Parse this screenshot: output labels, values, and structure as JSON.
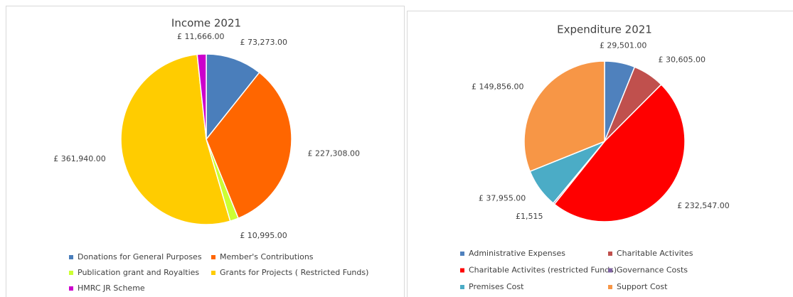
{
  "chart_data": [
    {
      "type": "pie",
      "title": "Income 2021",
      "categories": [
        "Donations for General Purposes",
        "Member's Contributions",
        "Publication grant and Royalties",
        "Grants for Projects ( Restricted Funds)",
        "HMRC JR Scheme"
      ],
      "values": [
        73273,
        227308,
        10995,
        361940,
        11666
      ],
      "value_labels": [
        "£ 73,273.00",
        "£ 227,308.00",
        "£ 10,995.00",
        "£ 361,940.00",
        "£ 11,666.00"
      ],
      "colors": [
        "#4a7ebb",
        "#ff6600",
        "#ccff33",
        "#ffcc00",
        "#cc00cc"
      ]
    },
    {
      "type": "pie",
      "title": "Expenditure 2021",
      "categories": [
        "Administrative Expenses",
        "Charitable Activites",
        "Charitable Activites (restricted Funds)",
        "Governance Costs",
        "Premises Cost",
        "Support Cost"
      ],
      "values": [
        29501,
        30605,
        232547,
        1515,
        37955,
        149856
      ],
      "value_labels": [
        "£ 29,501.00",
        "£ 30,605.00",
        "£ 232,547.00",
        "£1,515",
        "£ 37,955.00",
        "£ 149,856.00"
      ],
      "colors": [
        "#4f81bd",
        "#c0504d",
        "#ff0000",
        "#8064a2",
        "#4bacc6",
        "#f79646"
      ]
    }
  ]
}
